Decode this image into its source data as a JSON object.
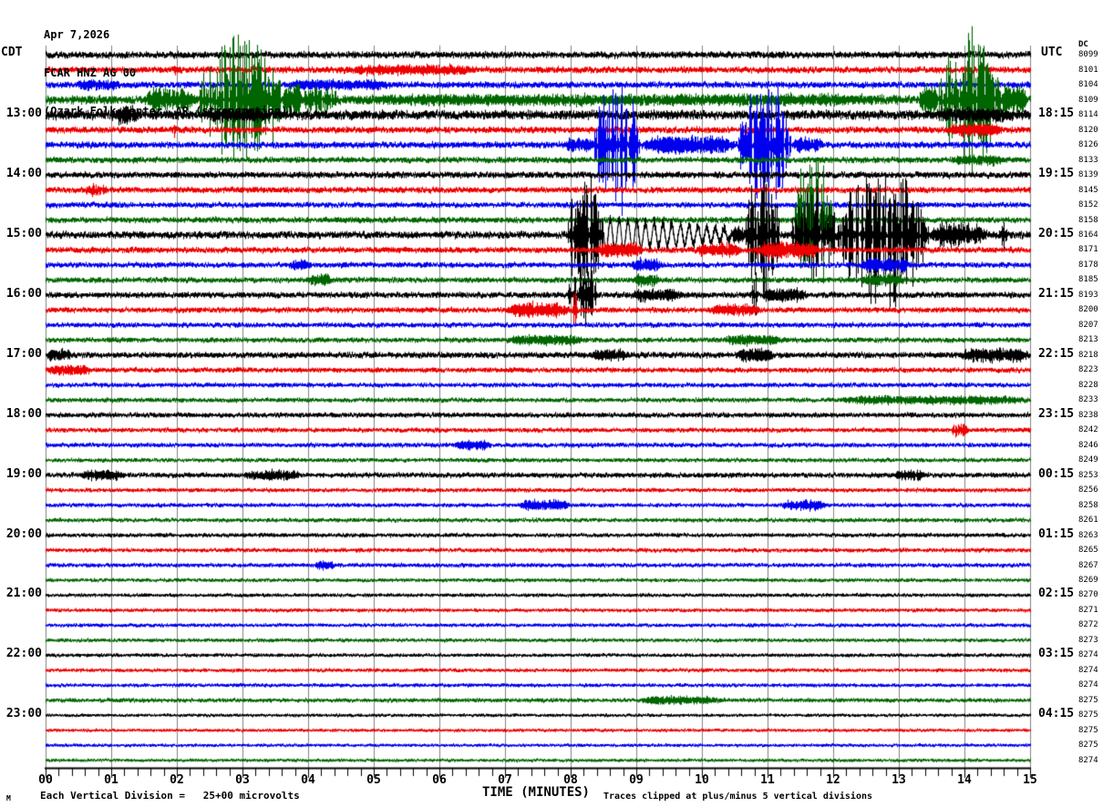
{
  "header": {
    "date": "Apr 7,2026",
    "station": "FCAR HNZ AG 00",
    "location": "(Ozark Folk Center, AR (strongmotion))"
  },
  "axes": {
    "left_tz": "CDT",
    "right_tz": "UTC",
    "right_col_header": "DC",
    "x_title": "TIME (MINUTES)"
  },
  "footer": {
    "corner_mark": "M",
    "scale_note": "Each Vertical Division =   25+00 microvolts",
    "clip_note": "Traces clipped at plus/minus 5 vertical divisions"
  },
  "chart_data": {
    "type": "line",
    "subtype": "helicorder-webicorder-seismogram",
    "title": "FCAR HNZ AG 00 (Ozark Folk Center, AR (strongmotion)) Apr 7,2026",
    "xlabel": "TIME (MINUTES)",
    "x_range_minutes": [
      0,
      15
    ],
    "x_tick_labels": [
      "00",
      "01",
      "02",
      "03",
      "04",
      "05",
      "06",
      "07",
      "08",
      "09",
      "10",
      "11",
      "12",
      "13",
      "14",
      "15"
    ],
    "minor_tick_interval_minutes": 0.2,
    "rows_count": 48,
    "row_duration_minutes": 15,
    "start_time_local": "12:00 CDT",
    "clip_divisions": 5,
    "scale_per_division_microvolts": "25+00",
    "grid": true,
    "grid_color": "#808080",
    "color_cycle": [
      "#000000",
      "#ee0000",
      "#0000ee",
      "#006600"
    ],
    "left_hour_labels": [
      {
        "row": 4,
        "label": "13:00"
      },
      {
        "row": 8,
        "label": "14:00"
      },
      {
        "row": 12,
        "label": "15:00"
      },
      {
        "row": 16,
        "label": "16:00"
      },
      {
        "row": 20,
        "label": "17:00"
      },
      {
        "row": 24,
        "label": "18:00"
      },
      {
        "row": 28,
        "label": "19:00"
      },
      {
        "row": 32,
        "label": "20:00"
      },
      {
        "row": 36,
        "label": "21:00"
      },
      {
        "row": 40,
        "label": "22:00"
      },
      {
        "row": 44,
        "label": "23:00"
      }
    ],
    "right_utc_labels": [
      {
        "row": 4,
        "label": "18:15"
      },
      {
        "row": 8,
        "label": "19:15"
      },
      {
        "row": 12,
        "label": "20:15"
      },
      {
        "row": 16,
        "label": "21:15"
      },
      {
        "row": 20,
        "label": "22:15"
      },
      {
        "row": 24,
        "label": "23:15"
      },
      {
        "row": 28,
        "label": "00:15"
      },
      {
        "row": 32,
        "label": "01:15"
      },
      {
        "row": 36,
        "label": "02:15"
      },
      {
        "row": 40,
        "label": "03:15"
      },
      {
        "row": 44,
        "label": "04:15"
      }
    ],
    "dc_offsets": [
      8099,
      8101,
      8104,
      8109,
      8114,
      8120,
      8126,
      8133,
      8139,
      8145,
      8152,
      8158,
      8164,
      8171,
      8178,
      8185,
      8193,
      8200,
      8207,
      8213,
      8218,
      8223,
      8228,
      8233,
      8238,
      8242,
      8246,
      8249,
      8253,
      8256,
      8258,
      8261,
      8263,
      8265,
      8267,
      8269,
      8270,
      8271,
      8272,
      8273,
      8274,
      8274,
      8274,
      8275,
      8275,
      8275,
      8275,
      8274
    ],
    "noise_by_row": [
      0.16,
      0.15,
      0.15,
      0.2,
      0.22,
      0.15,
      0.15,
      0.14,
      0.15,
      0.14,
      0.13,
      0.14,
      0.17,
      0.14,
      0.13,
      0.13,
      0.14,
      0.13,
      0.12,
      0.12,
      0.14,
      0.12,
      0.11,
      0.11,
      0.12,
      0.11,
      0.11,
      0.1,
      0.12,
      0.1,
      0.1,
      0.1,
      0.1,
      0.1,
      0.1,
      0.09,
      0.09,
      0.09,
      0.09,
      0.09,
      0.09,
      0.09,
      0.09,
      0.1,
      0.08,
      0.08,
      0.08,
      0.08
    ],
    "events": [
      {
        "row": 1,
        "start": 1.95,
        "end": 2.05,
        "amp": 0.5,
        "kind": "spike"
      },
      {
        "row": 1,
        "start": 4.5,
        "end": 6.6,
        "amp": 0.26,
        "kind": "fuzz"
      },
      {
        "row": 2,
        "start": 0.45,
        "end": 1.15,
        "amp": 0.28,
        "kind": "fuzz"
      },
      {
        "row": 2,
        "start": 3.6,
        "end": 5.3,
        "amp": 0.25,
        "kind": "fuzz"
      },
      {
        "row": 2,
        "start": 14.2,
        "end": 14.3,
        "amp": 0.7,
        "kind": "spike"
      },
      {
        "row": 3,
        "start": 1.5,
        "end": 2.33,
        "amp": 0.8,
        "kind": "fuzz"
      },
      {
        "row": 3,
        "start": 2.33,
        "end": 3.6,
        "amp": 5,
        "kind": "burst"
      },
      {
        "row": 3,
        "start": 3.6,
        "end": 3.9,
        "amp": 1.2,
        "kind": "fuzz"
      },
      {
        "row": 3,
        "start": 3.9,
        "end": 4.45,
        "amp": 0.9,
        "kind": "burst"
      },
      {
        "row": 3,
        "start": 4.45,
        "end": 13.3,
        "amp": 0.22,
        "kind": "fuzz"
      },
      {
        "row": 3,
        "start": 13.3,
        "end": 13.6,
        "amp": 1.0,
        "kind": "fuzz"
      },
      {
        "row": 3,
        "start": 13.6,
        "end": 14.55,
        "amp": 5,
        "kind": "burst"
      },
      {
        "row": 3,
        "start": 14.55,
        "end": 14.95,
        "amp": 1.2,
        "kind": "fuzz"
      },
      {
        "row": 4,
        "start": 1.0,
        "end": 1.4,
        "amp": 0.5,
        "kind": "burst"
      },
      {
        "row": 4,
        "start": 2.4,
        "end": 3.4,
        "amp": 0.3,
        "kind": "fuzz"
      },
      {
        "row": 4,
        "start": 13.5,
        "end": 14.8,
        "amp": 0.3,
        "kind": "fuzz"
      },
      {
        "row": 5,
        "start": 1.9,
        "end": 2.0,
        "amp": 0.5,
        "kind": "spike"
      },
      {
        "row": 5,
        "start": 13.7,
        "end": 14.6,
        "amp": 0.35,
        "kind": "fuzz"
      },
      {
        "row": 6,
        "start": 7.9,
        "end": 8.35,
        "amp": 0.4,
        "kind": "fuzz"
      },
      {
        "row": 6,
        "start": 8.35,
        "end": 9.05,
        "amp": 5,
        "kind": "burst"
      },
      {
        "row": 6,
        "start": 9.05,
        "end": 10.55,
        "amp": 0.6,
        "kind": "fuzz"
      },
      {
        "row": 6,
        "start": 10.55,
        "end": 11.35,
        "amp": 5,
        "kind": "burst"
      },
      {
        "row": 6,
        "start": 11.35,
        "end": 11.85,
        "amp": 0.45,
        "kind": "fuzz"
      },
      {
        "row": 7,
        "start": 13.8,
        "end": 14.6,
        "amp": 0.3,
        "kind": "fuzz"
      },
      {
        "row": 9,
        "start": 0.6,
        "end": 0.95,
        "amp": 0.4,
        "kind": "burst"
      },
      {
        "row": 11,
        "start": 11.4,
        "end": 12.0,
        "amp": 5,
        "kind": "burst"
      },
      {
        "row": 12,
        "start": 7.95,
        "end": 8.5,
        "amp": 5,
        "kind": "burst"
      },
      {
        "row": 12,
        "start": 8.5,
        "end": 10.45,
        "amp": 1.1,
        "kind": "ring",
        "freq": 7.5
      },
      {
        "row": 12,
        "start": 10.45,
        "end": 10.65,
        "amp": 0.6,
        "kind": "fuzz"
      },
      {
        "row": 12,
        "start": 10.65,
        "end": 11.2,
        "amp": 5,
        "kind": "burst"
      },
      {
        "row": 12,
        "start": 11.35,
        "end": 12.05,
        "amp": 3.5,
        "kind": "burst"
      },
      {
        "row": 12,
        "start": 12.05,
        "end": 13.45,
        "amp": 5,
        "kind": "burst"
      },
      {
        "row": 12,
        "start": 13.45,
        "end": 14.35,
        "amp": 0.8,
        "kind": "fuzz"
      },
      {
        "row": 12,
        "start": 14.5,
        "end": 14.65,
        "amp": 1.0,
        "kind": "spike"
      },
      {
        "row": 13,
        "start": 8.35,
        "end": 9.1,
        "amp": 0.5,
        "kind": "fuzz"
      },
      {
        "row": 13,
        "start": 9.9,
        "end": 10.6,
        "amp": 0.45,
        "kind": "fuzz"
      },
      {
        "row": 13,
        "start": 10.8,
        "end": 11.8,
        "amp": 0.6,
        "kind": "fuzz"
      },
      {
        "row": 14,
        "start": 3.7,
        "end": 4.05,
        "amp": 0.35,
        "kind": "fuzz"
      },
      {
        "row": 14,
        "start": 8.9,
        "end": 9.4,
        "amp": 0.4,
        "kind": "fuzz"
      },
      {
        "row": 14,
        "start": 12.4,
        "end": 13.2,
        "amp": 0.45,
        "kind": "fuzz"
      },
      {
        "row": 15,
        "start": 4.0,
        "end": 4.35,
        "amp": 0.4,
        "kind": "fuzz"
      },
      {
        "row": 15,
        "start": 8.95,
        "end": 9.35,
        "amp": 0.4,
        "kind": "fuzz"
      },
      {
        "row": 15,
        "start": 12.4,
        "end": 13.1,
        "amp": 0.35,
        "kind": "fuzz"
      },
      {
        "row": 16,
        "start": 7.95,
        "end": 8.4,
        "amp": 2.2,
        "kind": "burst"
      },
      {
        "row": 16,
        "start": 8.9,
        "end": 9.7,
        "amp": 0.35,
        "kind": "fuzz"
      },
      {
        "row": 16,
        "start": 10.72,
        "end": 10.85,
        "amp": 3.0,
        "kind": "spike"
      },
      {
        "row": 16,
        "start": 10.9,
        "end": 11.6,
        "amp": 0.4,
        "kind": "fuzz"
      },
      {
        "row": 17,
        "start": 7.0,
        "end": 8.0,
        "amp": 0.5,
        "kind": "fuzz"
      },
      {
        "row": 17,
        "start": 8.0,
        "end": 8.1,
        "amp": 1.6,
        "kind": "spike"
      },
      {
        "row": 17,
        "start": 10.1,
        "end": 10.9,
        "amp": 0.35,
        "kind": "fuzz"
      },
      {
        "row": 19,
        "start": 7.0,
        "end": 8.2,
        "amp": 0.3,
        "kind": "fuzz"
      },
      {
        "row": 19,
        "start": 10.3,
        "end": 11.3,
        "amp": 0.3,
        "kind": "fuzz"
      },
      {
        "row": 20,
        "start": 0.0,
        "end": 0.4,
        "amp": 0.3,
        "kind": "fuzz"
      },
      {
        "row": 20,
        "start": 8.3,
        "end": 8.9,
        "amp": 0.35,
        "kind": "fuzz"
      },
      {
        "row": 20,
        "start": 10.5,
        "end": 11.1,
        "amp": 0.45,
        "kind": "fuzz"
      },
      {
        "row": 20,
        "start": 13.9,
        "end": 15.0,
        "amp": 0.45,
        "kind": "fuzz"
      },
      {
        "row": 21,
        "start": 0.0,
        "end": 0.7,
        "amp": 0.3,
        "kind": "fuzz"
      },
      {
        "row": 23,
        "start": 12.0,
        "end": 15.0,
        "amp": 0.25,
        "kind": "fuzz"
      },
      {
        "row": 25,
        "start": 13.8,
        "end": 14.05,
        "amp": 0.55,
        "kind": "burst"
      },
      {
        "row": 26,
        "start": 6.2,
        "end": 6.8,
        "amp": 0.3,
        "kind": "fuzz"
      },
      {
        "row": 28,
        "start": 0.5,
        "end": 1.2,
        "amp": 0.3,
        "kind": "fuzz"
      },
      {
        "row": 28,
        "start": 3.0,
        "end": 3.9,
        "amp": 0.3,
        "kind": "fuzz"
      },
      {
        "row": 28,
        "start": 12.9,
        "end": 13.4,
        "amp": 0.28,
        "kind": "fuzz"
      },
      {
        "row": 30,
        "start": 7.2,
        "end": 8.0,
        "amp": 0.4,
        "kind": "fuzz"
      },
      {
        "row": 30,
        "start": 11.2,
        "end": 11.9,
        "amp": 0.32,
        "kind": "fuzz"
      },
      {
        "row": 34,
        "start": 4.1,
        "end": 4.4,
        "amp": 0.3,
        "kind": "fuzz"
      },
      {
        "row": 43,
        "start": 9.0,
        "end": 10.3,
        "amp": 0.25,
        "kind": "fuzz"
      }
    ]
  }
}
